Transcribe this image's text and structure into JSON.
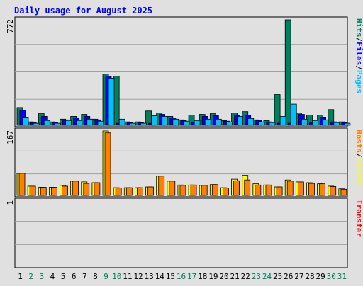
{
  "chart_data": {
    "type": "bar",
    "title": "Daily usage for August 2025",
    "x": [
      "1",
      "2",
      "3",
      "4",
      "5",
      "6",
      "7",
      "8",
      "9",
      "10",
      "11",
      "12",
      "13",
      "14",
      "15",
      "16",
      "17",
      "18",
      "19",
      "20",
      "21",
      "22",
      "23",
      "24",
      "25",
      "26",
      "27",
      "28",
      "29",
      "30",
      "31"
    ],
    "weekend_days": [
      "2",
      "3",
      "9",
      "10",
      "16",
      "17",
      "23",
      "24",
      "30",
      "31"
    ],
    "panels": [
      {
        "name": "hits-files-pages",
        "top_label": "772",
        "ylim": [
          0,
          772
        ],
        "right_label_parts": [
          {
            "text": "Hits",
            "color": "#00805c"
          },
          {
            "text": "/",
            "color": "#000000"
          },
          {
            "text": "Files",
            "color": "#0000ff"
          },
          {
            "text": "/",
            "color": "#000000"
          },
          {
            "text": "Pages",
            "color": "#00c0ff"
          }
        ],
        "series": [
          {
            "name": "Hits",
            "color": "#00805c",
            "values": [
              130,
              25,
              85,
              25,
              45,
              65,
              80,
              45,
              375,
              360,
              25,
              25,
              105,
              90,
              65,
              40,
              75,
              80,
              85,
              35,
              90,
              100,
              40,
              35,
              225,
              772,
              90,
              75,
              75,
              115,
              25
            ]
          },
          {
            "name": "Files",
            "color": "#0000ff",
            "values": [
              110,
              20,
              65,
              20,
              40,
              55,
              65,
              40,
              360,
              15,
              20,
              20,
              15,
              80,
              55,
              35,
              20,
              65,
              70,
              30,
              75,
              75,
              35,
              25,
              15,
              15,
              80,
              20,
              60,
              25,
              20
            ]
          },
          {
            "name": "Pages",
            "color": "#00c0ff",
            "values": [
              60,
              15,
              35,
              15,
              35,
              35,
              45,
              30,
              345,
              45,
              15,
              15,
              70,
              65,
              45,
              30,
              35,
              45,
              45,
              25,
              65,
              50,
              25,
              20,
              65,
              155,
              45,
              35,
              40,
              20,
              15
            ]
          }
        ]
      },
      {
        "name": "visits-hosts",
        "top_label": "167",
        "ylim": [
          0,
          167
        ],
        "right_label_parts": [
          {
            "text": "Hosts",
            "color": "#ff8000"
          },
          {
            "text": "/",
            "color": "#000000"
          },
          {
            "text": "Visits",
            "color": "#ffff00"
          }
        ],
        "series": [
          {
            "name": "Visits",
            "color": "#ffff00",
            "values": [
              57,
              24,
              21,
              21,
              26,
              37,
              35,
              33,
              167,
              20,
              20,
              20,
              22,
              50,
              37,
              27,
              27,
              26,
              28,
              20,
              42,
              52,
              30,
              27,
              22,
              40,
              35,
              33,
              30,
              24,
              17
            ]
          },
          {
            "name": "Hosts",
            "color": "#ff8000",
            "values": [
              57,
              24,
              21,
              21,
              24,
              37,
              31,
              33,
              162,
              19,
              20,
              20,
              22,
              50,
              37,
              26,
              27,
              26,
              28,
              19,
              38,
              40,
              27,
              27,
              22,
              37,
              35,
              31,
              30,
              23,
              16
            ]
          }
        ]
      },
      {
        "name": "transfer",
        "top_label": "1",
        "ylim": [
          0,
          1
        ],
        "right_label_parts": [
          {
            "text": "Transfer",
            "color": "#ff0000"
          }
        ],
        "series": [
          {
            "name": "Transfer",
            "color": "#ff0000",
            "values": [
              0,
              0,
              0,
              0,
              0,
              0,
              0,
              0,
              0,
              0,
              0,
              0,
              0,
              0,
              0,
              0,
              0,
              0,
              0,
              0,
              0,
              0,
              0,
              0,
              0,
              0,
              0,
              0,
              0,
              0,
              0
            ]
          }
        ]
      }
    ],
    "grid": true
  },
  "colors": {
    "background": "#e0e0e0",
    "title": "#0000ff",
    "weekday_label": "#000000",
    "weekend_label": "#00805c",
    "gridline": "#a0a0a0"
  }
}
